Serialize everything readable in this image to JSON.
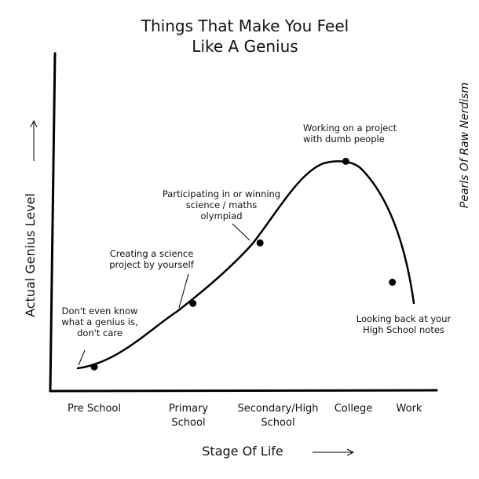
{
  "chart_data": {
    "type": "line",
    "title_lines": [
      "Things That Make You Feel",
      "Like A Genius"
    ],
    "xlabel": "Stage Of Life",
    "ylabel": "Actual Genius Level",
    "credit": "Pearls Of Raw Nerdism",
    "categories": [
      {
        "lines": [
          "Pre School"
        ]
      },
      {
        "lines": [
          "Primary",
          "School"
        ]
      },
      {
        "lines": [
          "Secondary/High",
          "School"
        ]
      },
      {
        "lines": [
          "College"
        ]
      },
      {
        "lines": [
          "Work"
        ]
      }
    ],
    "points": [
      {
        "x": 0.0,
        "y": 0.08,
        "label_lines": [
          "Don't even know",
          "what a genius is,",
          "don't care"
        ]
      },
      {
        "x": 1.05,
        "y": 0.29,
        "label_lines": [
          "Creating a science",
          "project by yourself"
        ]
      },
      {
        "x": 1.8,
        "y": 0.49,
        "label_lines": [
          "Participating in or winning",
          "science / maths",
          "olympiad"
        ]
      },
      {
        "x": 2.9,
        "y": 0.76,
        "label_lines": [
          "Working on a project",
          "with dumb people"
        ]
      },
      {
        "x": 3.7,
        "y": 0.36,
        "label_lines": [
          "Looking back at your",
          "High School notes"
        ]
      }
    ],
    "grid": false,
    "legend": "none",
    "line_color": "#000000"
  }
}
